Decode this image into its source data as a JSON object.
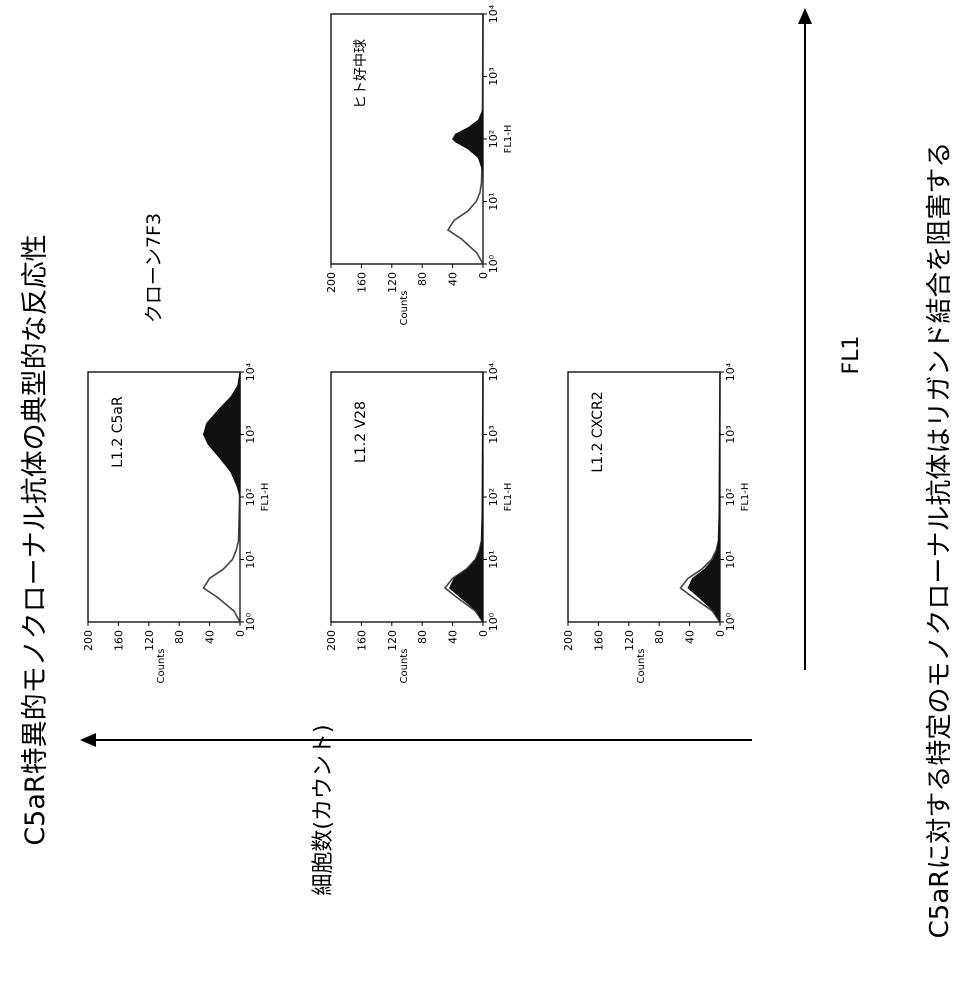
{
  "title": "C5aR特異的モノクローナル抗体の典型的な反応性",
  "caption": "C5aRに対する特定のモノクローナル抗体はリガンド結合を阻害する",
  "clone_label": "クローン7F3",
  "xaxis_label": "FL1",
  "yaxis_label": "細胞数(カウント)",
  "chart_data": [
    {
      "type": "area",
      "panel_label": "L1.2 C5aR",
      "xlabel": "FL1-H",
      "ylabel": "Counts",
      "xscale": "log",
      "xlim": [
        1,
        10000
      ],
      "ylim": [
        0,
        200
      ],
      "xticks": [
        "10⁰",
        "10¹",
        "10²",
        "10³",
        "10⁴"
      ],
      "yticks": [
        "0",
        "40",
        "80",
        "120",
        "160",
        "200"
      ],
      "series": [
        {
          "style": "open",
          "x": [
            1,
            1.5,
            2.5,
            3.5,
            5,
            7,
            10,
            14,
            20,
            50,
            200,
            10000
          ],
          "y": [
            0,
            8,
            30,
            48,
            40,
            22,
            10,
            5,
            2,
            1,
            0,
            0
          ]
        },
        {
          "style": "filled",
          "x": [
            1,
            100,
            150,
            250,
            400,
            700,
            1000,
            1500,
            2500,
            4000,
            6000,
            10000
          ],
          "y": [
            0,
            0,
            4,
            12,
            25,
            42,
            48,
            44,
            28,
            12,
            3,
            0
          ]
        }
      ]
    },
    {
      "type": "area",
      "panel_label": "L1.2 V28",
      "xlabel": "FL1-H",
      "ylabel": "Counts",
      "xscale": "log",
      "xlim": [
        1,
        10000
      ],
      "ylim": [
        0,
        200
      ],
      "xticks": [
        "10⁰",
        "10¹",
        "10²",
        "10³",
        "10⁴"
      ],
      "yticks": [
        "0",
        "40",
        "80",
        "120",
        "160",
        "200"
      ],
      "series": [
        {
          "style": "open",
          "x": [
            1,
            1.5,
            2.5,
            3.5,
            5,
            7,
            10,
            14,
            20,
            50,
            10000
          ],
          "y": [
            0,
            10,
            35,
            50,
            40,
            22,
            10,
            5,
            2,
            1,
            0
          ]
        },
        {
          "style": "filled",
          "x": [
            1,
            1.5,
            2.5,
            3.5,
            5,
            7,
            10,
            14,
            20,
            50,
            10000
          ],
          "y": [
            0,
            8,
            30,
            44,
            38,
            20,
            9,
            4,
            2,
            1,
            0
          ]
        }
      ]
    },
    {
      "type": "area",
      "panel_label": "L1.2 CXCR2",
      "xlabel": "FL1-H",
      "ylabel": "Counts",
      "xscale": "log",
      "xlim": [
        1,
        10000
      ],
      "ylim": [
        0,
        200
      ],
      "xticks": [
        "10⁰",
        "10¹",
        "10²",
        "10³",
        "10⁴"
      ],
      "yticks": [
        "0",
        "40",
        "80",
        "120",
        "160",
        "200"
      ],
      "series": [
        {
          "style": "open",
          "x": [
            1,
            1.5,
            2.5,
            3.5,
            5,
            7,
            10,
            14,
            20,
            50,
            10000
          ],
          "y": [
            0,
            10,
            36,
            52,
            42,
            24,
            11,
            5,
            2,
            1,
            0
          ]
        },
        {
          "style": "filled",
          "x": [
            1,
            1.5,
            2.5,
            3.5,
            5,
            7,
            10,
            14,
            20,
            50,
            10000
          ],
          "y": [
            0,
            8,
            28,
            42,
            36,
            20,
            9,
            4,
            2,
            1,
            0
          ]
        }
      ]
    },
    {
      "type": "area",
      "panel_label": "ヒト好中球",
      "xlabel": "FL1-H",
      "ylabel": "Counts",
      "xscale": "log",
      "xlim": [
        1,
        10000
      ],
      "ylim": [
        0,
        200
      ],
      "xticks": [
        "10⁰",
        "10¹",
        "10²",
        "10³",
        "10⁴"
      ],
      "yticks": [
        "0",
        "40",
        "80",
        "120",
        "160",
        "200"
      ],
      "series": [
        {
          "style": "open",
          "x": [
            1,
            1.5,
            2.5,
            3.5,
            5,
            7,
            10,
            14,
            20,
            50,
            10000
          ],
          "y": [
            0,
            8,
            28,
            46,
            38,
            20,
            9,
            4,
            2,
            1,
            0
          ]
        },
        {
          "style": "filled",
          "x": [
            1,
            30,
            50,
            70,
            90,
            100,
            120,
            150,
            200,
            300,
            10000
          ],
          "y": [
            0,
            0,
            6,
            20,
            36,
            40,
            36,
            20,
            6,
            0,
            0
          ]
        }
      ]
    }
  ]
}
